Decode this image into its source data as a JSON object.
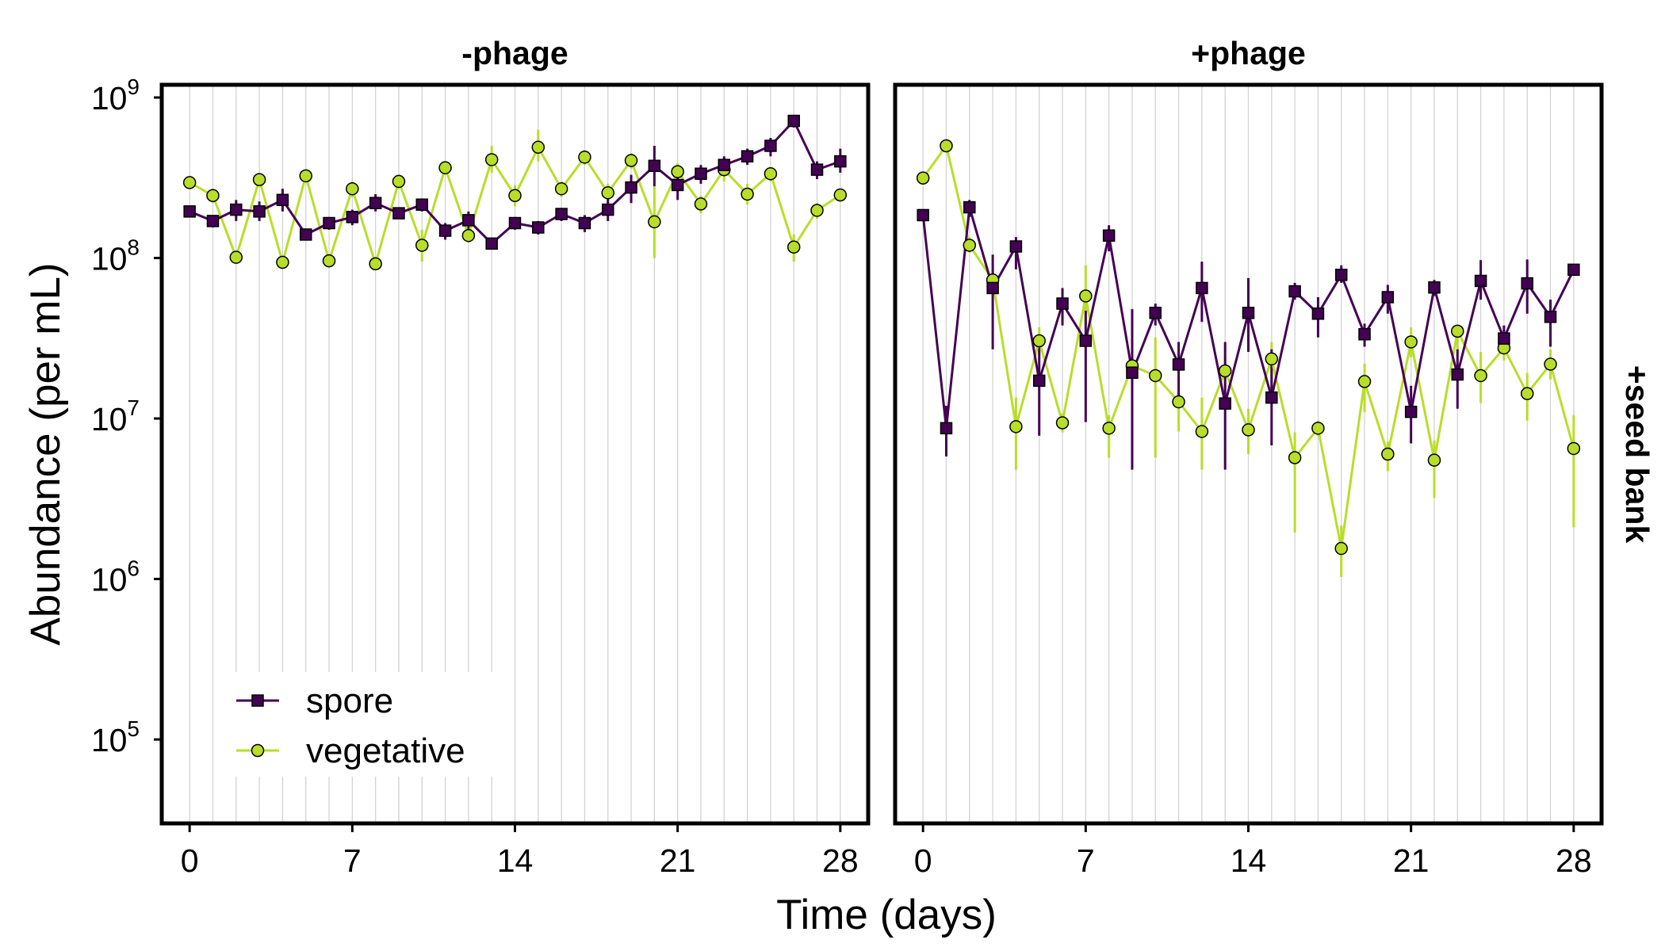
{
  "chart_data": {
    "type": "line",
    "y_scale": "log10",
    "ylim": [
      30000,
      1200000000
    ],
    "xlim": [
      -1.2,
      29.2
    ],
    "grid": "vertical gridlines at each day",
    "xlabel": "Time (days)",
    "ylabel": "Abundance (per mL)",
    "x_ticks": [
      0,
      7,
      14,
      21,
      28
    ],
    "x_tick_labels": [
      "0",
      "7",
      "14",
      "21",
      "28"
    ],
    "y_ticks": [
      {
        "value": 100000,
        "base": "10",
        "exp": "5"
      },
      {
        "value": 1000000,
        "base": "10",
        "exp": "6"
      },
      {
        "value": 10000000,
        "base": "10",
        "exp": "7"
      },
      {
        "value": 100000000,
        "base": "10",
        "exp": "8"
      },
      {
        "value": 1000000000,
        "base": "10",
        "exp": "9"
      }
    ],
    "row_label": "+seed bank",
    "legend": {
      "position": "bottom-left",
      "entries": [
        {
          "label": "spore",
          "color": "#440154",
          "marker": "square"
        },
        {
          "label": "vegetative",
          "color": "#b8de29",
          "marker": "circle"
        }
      ]
    },
    "panels": [
      {
        "title": "-phage",
        "series": [
          {
            "name": "spore",
            "color": "#440154",
            "marker": "square",
            "x": [
              0,
              1,
              2,
              3,
              4,
              5,
              6,
              7,
              8,
              9,
              10,
              11,
              12,
              13,
              14,
              15,
              16,
              17,
              18,
              19,
              20,
              21,
              22,
              23,
              24,
              25,
              26,
              27,
              28
            ],
            "y": [
              195000000,
              170000000,
              200000000,
              195000000,
              230000000,
              140000000,
              165000000,
              180000000,
              220000000,
              190000000,
              215000000,
              148000000,
              172000000,
              123000000,
              165000000,
              155000000,
              188000000,
              165000000,
              200000000,
              275000000,
              375000000,
              285000000,
              335000000,
              380000000,
              430000000,
              500000000,
              715000000,
              355000000,
              400000000
            ],
            "err_low": [
              180000000,
              155000000,
              170000000,
              170000000,
              195000000,
              130000000,
              150000000,
              160000000,
              195000000,
              175000000,
              195000000,
              130000000,
              150000000,
              115000000,
              150000000,
              140000000,
              170000000,
              145000000,
              170000000,
              220000000,
              280000000,
              230000000,
              290000000,
              330000000,
              380000000,
              430000000,
              650000000,
              310000000,
              340000000
            ],
            "err_high": [
              210000000,
              185000000,
              230000000,
              225000000,
              270000000,
              150000000,
              180000000,
              200000000,
              250000000,
              205000000,
              235000000,
              165000000,
              195000000,
              132000000,
              180000000,
              170000000,
              205000000,
              185000000,
              235000000,
              330000000,
              500000000,
              345000000,
              380000000,
              430000000,
              480000000,
              560000000,
              780000000,
              400000000,
              480000000
            ]
          },
          {
            "name": "vegetative",
            "color": "#b8de29",
            "marker": "circle",
            "x": [
              0,
              1,
              2,
              3,
              4,
              5,
              6,
              7,
              8,
              9,
              10,
              11,
              12,
              13,
              14,
              15,
              16,
              17,
              18,
              19,
              20,
              21,
              22,
              23,
              24,
              25,
              26,
              27,
              28
            ],
            "y": [
              295000000,
              245000000,
              101000000,
              308000000,
              94000000,
              325000000,
              96000000,
              270000000,
              92000000,
              300000000,
              120000000,
              365000000,
              138000000,
              410000000,
              245000000,
              490000000,
              270000000,
              425000000,
              255000000,
              405000000,
              168000000,
              345000000,
              217000000,
              355000000,
              250000000,
              335000000,
              117000000,
              198000000,
              247000000
            ],
            "err_low": [
              270000000,
              220000000,
              92000000,
              280000000,
              86000000,
              300000000,
              88000000,
              240000000,
              85000000,
              270000000,
              95000000,
              330000000,
              125000000,
              340000000,
              210000000,
              400000000,
              240000000,
              380000000,
              220000000,
              360000000,
              100000000,
              300000000,
              190000000,
              300000000,
              215000000,
              300000000,
              95000000,
              175000000,
              225000000
            ],
            "err_high": [
              320000000,
              270000000,
              110000000,
              335000000,
              102000000,
              350000000,
              104000000,
              300000000,
              100000000,
              330000000,
              150000000,
              400000000,
              152000000,
              500000000,
              285000000,
              630000000,
              300000000,
              470000000,
              290000000,
              450000000,
              280000000,
              390000000,
              245000000,
              410000000,
              290000000,
              370000000,
              140000000,
              220000000,
              270000000
            ]
          }
        ]
      },
      {
        "title": "+phage",
        "series": [
          {
            "name": "spore",
            "color": "#440154",
            "marker": "square",
            "x": [
              0,
              1,
              2,
              3,
              4,
              5,
              6,
              7,
              8,
              9,
              10,
              11,
              12,
              13,
              14,
              15,
              16,
              17,
              18,
              19,
              20,
              21,
              22,
              23,
              24,
              25,
              26,
              27,
              28
            ],
            "y": [
              185000000,
              8700000,
              207000000,
              65000000,
              118000000,
              17200000,
              52000000,
              30500000,
              138000000,
              19300000,
              45500000,
              21700000,
              65000000,
              12400000,
              45500000,
              13500000,
              62000000,
              45000000,
              78500000,
              33500000,
              57000000,
              11000000,
              65500000,
              18800000,
              72000000,
              31500000,
              69500000,
              43000000,
              84500000
            ],
            "err_low": [
              170000000,
              5800000,
              180000000,
              27000000,
              85000000,
              7800000,
              38000000,
              9500000,
              110000000,
              4800000,
              38000000,
              13500000,
              40000000,
              4800000,
              26000000,
              6800000,
              55000000,
              32000000,
              70000000,
              28000000,
              45000000,
              7000000,
              58000000,
              11500000,
              55000000,
              26000000,
              45000000,
              28000000,
              78000000
            ],
            "err_high": [
              200000000,
              12000000,
              230000000,
              105000000,
              135000000,
              31000000,
              65000000,
              47000000,
              160000000,
              48000000,
              52000000,
              30000000,
              95000000,
              30000000,
              75000000,
              27000000,
              70000000,
              57000000,
              90000000,
              39000000,
              68000000,
              16000000,
              73000000,
              27000000,
              97000000,
              38000000,
              98000000,
              55000000,
              91000000
            ]
          },
          {
            "name": "vegetative",
            "color": "#b8de29",
            "marker": "circle",
            "x": [
              0,
              1,
              2,
              3,
              4,
              5,
              6,
              7,
              8,
              9,
              10,
              11,
              12,
              13,
              14,
              15,
              16,
              17,
              18,
              19,
              20,
              21,
              22,
              23,
              24,
              25,
              26,
              27,
              28
            ],
            "y": [
              315000000,
              500000000,
              120000000,
              73000000,
              8900000,
              30500000,
              9400000,
              58000000,
              8700000,
              21300000,
              18500000,
              12700000,
              8300000,
              19800000,
              8500000,
              23500000,
              5700000,
              8700000,
              1550000,
              17000000,
              6000000,
              30000000,
              5500000,
              35000000,
              18500000,
              27500000,
              14300000,
              21800000,
              6500000
            ],
            "err_low": [
              290000000,
              470000000,
              108000000,
              62000000,
              4800000,
              25000000,
              8200000,
              38000000,
              5700000,
              16000000,
              5700000,
              8300000,
              4800000,
              15000000,
              6000000,
              14000000,
              1950000,
              7800000,
              1030000,
              11000000,
              4700000,
              24000000,
              3200000,
              27000000,
              12500000,
              23000000,
              9700000,
              17500000,
              2100000
            ],
            "err_high": [
              340000000,
              530000000,
              135000000,
              85000000,
              13500000,
              37000000,
              10700000,
              90000000,
              10500000,
              28000000,
              32000000,
              17500000,
              13500000,
              24000000,
              11500000,
              30000000,
              8200000,
              9700000,
              2150000,
              22000000,
              7200000,
              37000000,
              7300000,
              38000000,
              26000000,
              32000000,
              19200000,
              27000000,
              10500000
            ]
          }
        ]
      }
    ]
  }
}
